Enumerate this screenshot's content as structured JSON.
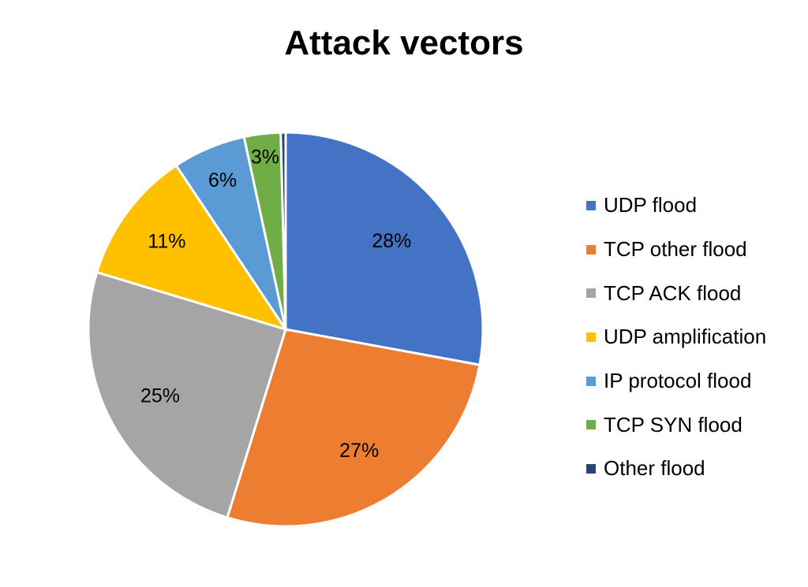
{
  "chart_data": {
    "type": "pie",
    "title": "Attack vectors",
    "slices": [
      {
        "name": "UDP flood",
        "value": 28,
        "label": "28%",
        "color": "#4472C4"
      },
      {
        "name": "TCP other flood",
        "value": 27,
        "label": "27%",
        "color": "#ED7D31"
      },
      {
        "name": "TCP ACK flood",
        "value": 25,
        "label": "25%",
        "color": "#A5A5A5"
      },
      {
        "name": "UDP amplification",
        "value": 11,
        "label": "11%",
        "color": "#FFC000"
      },
      {
        "name": "IP protocol flood",
        "value": 6,
        "label": "6%",
        "color": "#5B9BD5"
      },
      {
        "name": "TCP SYN flood",
        "value": 3,
        "label": "3%",
        "color": "#70AD47"
      },
      {
        "name": "Other flood",
        "value": 0.4,
        "label": "",
        "color": "#264478"
      }
    ],
    "legend_position": "right",
    "start_angle": "top (12 o'clock), clockwise"
  }
}
